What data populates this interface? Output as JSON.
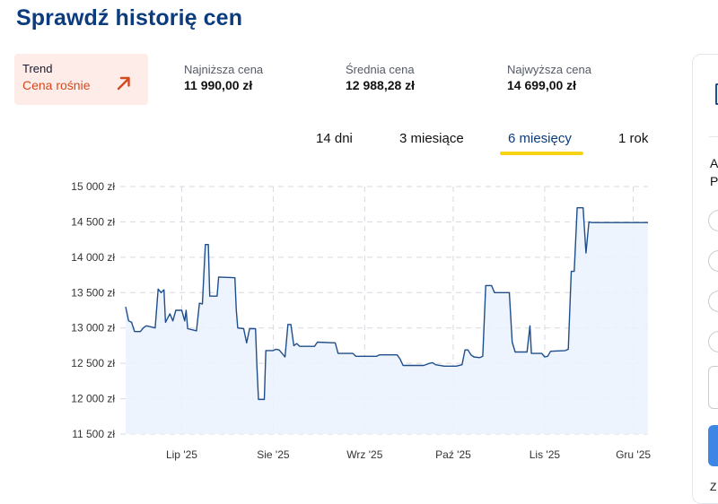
{
  "title": "Sprawdź historię cen",
  "trend": {
    "label": "Trend",
    "value": "Cena rośnie",
    "icon": "arrow-up-right-icon",
    "color": "#d34a1f"
  },
  "stats": {
    "lowest": {
      "label": "Najniższa cena",
      "value": "11 990,00 zł"
    },
    "average": {
      "label": "Średnia cena",
      "value": "12 988,28 zł"
    },
    "highest": {
      "label": "Najwyższa cena",
      "value": "14 699,00 zł"
    }
  },
  "tabs": [
    {
      "label": "14 dni",
      "active": false
    },
    {
      "label": "3 miesiące",
      "active": false
    },
    {
      "label": "6 miesięcy",
      "active": true
    },
    {
      "label": "1 rok",
      "active": false
    }
  ],
  "side_panel": {
    "line1": "A",
    "line2": "P",
    "footer": "Z"
  },
  "colors": {
    "accent": "#0b3c7e",
    "tab_underline": "#f7d417",
    "line": "#1f4e8c",
    "fill": "#eaf2fd",
    "trend_bg": "#fdece8"
  },
  "chart_data": {
    "type": "area",
    "y_ticks": [
      "15 000 zł",
      "14 500 zł",
      "14 000 zł",
      "13 500 zł",
      "13 000 zł",
      "12 500 zł",
      "12 000 zł",
      "11 500 zł"
    ],
    "y_tick_values": [
      15000,
      14500,
      14000,
      13500,
      13000,
      12500,
      12000,
      11500
    ],
    "x_ticks": [
      "Lip '25",
      "Sie '25",
      "Wrz '25",
      "Paź '25",
      "Lis '25",
      "Gru '25"
    ],
    "x_tick_days": [
      12,
      43,
      74,
      104,
      135,
      165
    ],
    "ylim": [
      11500,
      15000
    ],
    "xlim": [
      -7,
      170
    ],
    "grid": true,
    "series": [
      {
        "points": [
          [
            -7,
            13300
          ],
          [
            -6,
            13100
          ],
          [
            -5,
            13080
          ],
          [
            -4,
            12950
          ],
          [
            -2,
            12950
          ],
          [
            -1,
            13000
          ],
          [
            0,
            13030
          ],
          [
            1,
            13020
          ],
          [
            3,
            13000
          ],
          [
            4,
            13550
          ],
          [
            5,
            13500
          ],
          [
            6,
            13540
          ],
          [
            6.5,
            13080
          ],
          [
            8,
            13200
          ],
          [
            9,
            13100
          ],
          [
            10,
            13250
          ],
          [
            12,
            13250
          ],
          [
            13,
            13100
          ],
          [
            13.5,
            13250
          ],
          [
            14,
            12990
          ],
          [
            16,
            12970
          ],
          [
            17,
            12960
          ],
          [
            18,
            13350
          ],
          [
            19,
            13340
          ],
          [
            20,
            14180
          ],
          [
            21,
            14180
          ],
          [
            21.5,
            13450
          ],
          [
            24,
            13450
          ],
          [
            24.5,
            13720
          ],
          [
            30,
            13710
          ],
          [
            30.5,
            13250
          ],
          [
            31,
            13000
          ],
          [
            33,
            12990
          ],
          [
            34,
            12790
          ],
          [
            35,
            12990
          ],
          [
            37,
            12990
          ],
          [
            37.5,
            12450
          ],
          [
            38,
            11990
          ],
          [
            40,
            11990
          ],
          [
            40.5,
            12680
          ],
          [
            43,
            12680
          ],
          [
            44,
            12700
          ],
          [
            45,
            12690
          ],
          [
            46,
            12640
          ],
          [
            47,
            12590
          ],
          [
            48,
            13050
          ],
          [
            49,
            13050
          ],
          [
            50,
            12750
          ],
          [
            51,
            12780
          ],
          [
            52,
            12740
          ],
          [
            57,
            12740
          ],
          [
            58,
            12800
          ],
          [
            64,
            12790
          ],
          [
            65,
            12640
          ],
          [
            70,
            12640
          ],
          [
            71,
            12600
          ],
          [
            78,
            12600
          ],
          [
            79,
            12620
          ],
          [
            85,
            12620
          ],
          [
            86,
            12560
          ],
          [
            87,
            12470
          ],
          [
            94,
            12470
          ],
          [
            96,
            12500
          ],
          [
            97,
            12510
          ],
          [
            98,
            12480
          ],
          [
            101,
            12460
          ],
          [
            105,
            12460
          ],
          [
            107,
            12480
          ],
          [
            108,
            12690
          ],
          [
            109,
            12690
          ],
          [
            110,
            12620
          ],
          [
            111,
            12590
          ],
          [
            113,
            12580
          ],
          [
            114,
            12600
          ],
          [
            115,
            13600
          ],
          [
            117,
            13600
          ],
          [
            118,
            13500
          ],
          [
            123,
            13500
          ],
          [
            124,
            12800
          ],
          [
            125,
            12660
          ],
          [
            129,
            12660
          ],
          [
            130,
            13030
          ],
          [
            130.5,
            12640
          ],
          [
            134,
            12640
          ],
          [
            135,
            12590
          ],
          [
            136,
            12600
          ],
          [
            137,
            12670
          ],
          [
            142,
            12680
          ],
          [
            143,
            12700
          ],
          [
            144,
            13800
          ],
          [
            145,
            13800
          ],
          [
            146,
            14700
          ],
          [
            148,
            14700
          ],
          [
            149,
            14060
          ],
          [
            150,
            14500
          ],
          [
            151,
            14490
          ],
          [
            170,
            14490
          ]
        ]
      }
    ]
  }
}
